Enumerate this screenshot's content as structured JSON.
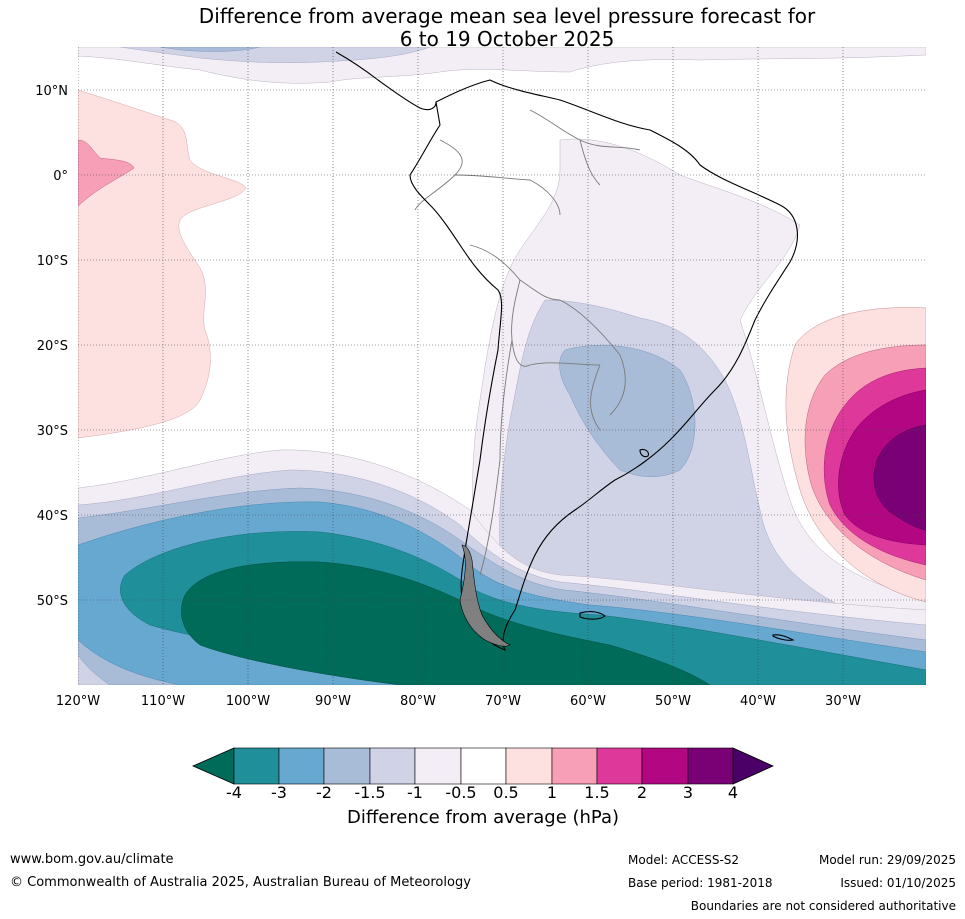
{
  "title": {
    "line1": "Difference from average mean sea level pressure forecast for",
    "line2": "6 to 19 October 2025"
  },
  "map": {
    "latitude_labels": [
      "10°N",
      "0°",
      "10°S",
      "20°S",
      "30°S",
      "40°S",
      "50°S"
    ],
    "longitude_labels": [
      "120°W",
      "110°W",
      "100°W",
      "90°W",
      "80°W",
      "70°W",
      "60°W",
      "50°W",
      "40°W",
      "30°W"
    ]
  },
  "colorbar": {
    "title": "Difference from average (hPa)",
    "tick_labels": [
      "-4",
      "-3",
      "-2",
      "-1.5",
      "-1",
      "-0.5",
      "0.5",
      "1",
      "1.5",
      "2",
      "3",
      "4"
    ],
    "colors": [
      "#006b58",
      "#1f8f99",
      "#66a8d0",
      "#a8bcd8",
      "#d0d2e6",
      "#f3eef5",
      "#ffffff",
      "#fde0e0",
      "#f79fb7",
      "#de389a",
      "#b30682",
      "#7a0175",
      "#4a0066"
    ]
  },
  "footer": {
    "website": "www.bom.gov.au/climate",
    "copyright": "© Commonwealth of Australia 2025, Australian Bureau of Meteorology",
    "model": "Model: ACCESS-S2",
    "base_period": "Base period: 1981-2018",
    "model_run": "Model run: 29/09/2025",
    "issued": "Issued: 01/10/2025",
    "disclaimer": "Boundaries are not considered authoritative"
  }
}
